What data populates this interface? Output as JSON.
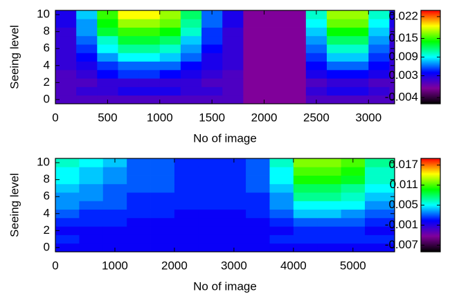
{
  "chart_data": [
    {
      "type": "heatmap",
      "xlabel": "No of image",
      "ylabel": "Seeing level",
      "x_edges": [
        0,
        200,
        400,
        600,
        800,
        1000,
        1200,
        1400,
        1600,
        1800,
        2000,
        2200,
        2400,
        2600,
        2800,
        3000,
        3200,
        3250
      ],
      "y_edges": [
        -0.5,
        0.5,
        1.5,
        2.5,
        3.5,
        4.5,
        5.5,
        6.5,
        7.5,
        8.5,
        9.5,
        10.5
      ],
      "values": [
        [
          0.001,
          0.001,
          0.001,
          0.001,
          0.001,
          0.001,
          0.001,
          0.001,
          0.001,
          -0.001,
          -0.001,
          -0.001,
          0.001,
          0.001,
          0.001,
          0.001,
          0.001
        ],
        [
          0.001,
          0.002,
          0.002,
          0.003,
          0.003,
          0.003,
          0.002,
          0.002,
          0.001,
          -0.001,
          -0.001,
          -0.001,
          0.002,
          0.003,
          0.003,
          0.002,
          0.001
        ],
        [
          0.001,
          0.001,
          0.002,
          0.002,
          0.002,
          0.002,
          0.002,
          0.001,
          0.001,
          -0.001,
          -0.001,
          -0.001,
          0.001,
          0.002,
          0.002,
          0.001,
          0.001
        ],
        [
          0.001,
          0.002,
          0.004,
          0.005,
          0.005,
          0.004,
          0.003,
          0.002,
          0.001,
          -0.001,
          -0.001,
          -0.001,
          0.003,
          0.004,
          0.004,
          0.003,
          0.001
        ],
        [
          0.002,
          0.003,
          0.005,
          0.006,
          0.006,
          0.006,
          0.004,
          0.003,
          0.002,
          -0.001,
          -0.001,
          -0.001,
          0.004,
          0.006,
          0.006,
          0.004,
          0.002
        ],
        [
          0.002,
          0.004,
          0.007,
          0.009,
          0.009,
          0.008,
          0.006,
          0.003,
          0.002,
          -0.001,
          -0.001,
          -0.001,
          0.005,
          0.008,
          0.008,
          0.005,
          0.002
        ],
        [
          0.002,
          0.005,
          0.009,
          0.011,
          0.011,
          0.01,
          0.007,
          0.004,
          0.002,
          -0.001,
          -0.001,
          -0.001,
          0.006,
          0.01,
          0.01,
          0.006,
          0.002
        ],
        [
          0.002,
          0.006,
          0.01,
          0.013,
          0.013,
          0.012,
          0.008,
          0.005,
          0.002,
          -0.001,
          -0.001,
          -0.001,
          0.007,
          0.012,
          0.012,
          0.007,
          0.002
        ],
        [
          0.002,
          0.007,
          0.013,
          0.015,
          0.015,
          0.014,
          0.01,
          0.005,
          0.002,
          -0.001,
          -0.001,
          -0.001,
          0.008,
          0.014,
          0.014,
          0.008,
          0.002
        ],
        [
          0.003,
          0.007,
          0.014,
          0.017,
          0.017,
          0.016,
          0.011,
          0.006,
          0.003,
          -0.001,
          -0.001,
          -0.001,
          0.009,
          0.016,
          0.016,
          0.009,
          0.003
        ],
        [
          0.003,
          0.008,
          0.015,
          0.019,
          0.019,
          0.017,
          0.012,
          0.006,
          0.003,
          -0.001,
          -0.001,
          -0.001,
          0.01,
          0.017,
          0.017,
          0.01,
          0.003
        ]
      ],
      "xlim": [
        0,
        3250
      ],
      "xticks": [
        0,
        500,
        1000,
        1500,
        2000,
        2500,
        3000
      ],
      "ylim": [
        -0.5,
        10.5
      ],
      "yticks": [
        0,
        2,
        4,
        6,
        8,
        10
      ],
      "zlim": [
        -0.006,
        0.024
      ],
      "zticks": [
        -0.004,
        0.003,
        0.009,
        0.015,
        0.022
      ],
      "colormap": [
        "#000000",
        "#80009a",
        "#0000ff",
        "#00ffff",
        "#00ff00",
        "#ffff00",
        "#ff0000"
      ]
    },
    {
      "type": "heatmap",
      "xlabel": "No of image",
      "ylabel": "Seeing level",
      "x_edges": [
        0,
        400,
        800,
        1200,
        1600,
        2000,
        2400,
        2800,
        3200,
        3600,
        4000,
        4400,
        4800,
        5200,
        5700
      ],
      "y_edges": [
        -0.5,
        0.5,
        1.5,
        2.5,
        3.5,
        4.5,
        5.5,
        6.5,
        7.5,
        8.5,
        9.5,
        10.5
      ],
      "values": [
        [
          0,
          0,
          0,
          0,
          0,
          0,
          0,
          0,
          0,
          0,
          0,
          0,
          0,
          0
        ],
        [
          0.001,
          0,
          0,
          0,
          0,
          0,
          0,
          0,
          0,
          0.001,
          0.001,
          0.001,
          0.001,
          0.001
        ],
        [
          0,
          0,
          0,
          0,
          0,
          0,
          0,
          0,
          0,
          0,
          0.001,
          0.001,
          0.001,
          0
        ],
        [
          0.001,
          0.001,
          0.001,
          0,
          0,
          0,
          0,
          0,
          0,
          0.001,
          0.002,
          0.002,
          0.002,
          0.001
        ],
        [
          0.002,
          0.001,
          0.001,
          0.001,
          0.001,
          0,
          0,
          0,
          0.001,
          0.002,
          0.004,
          0.004,
          0.003,
          0.002
        ],
        [
          0.003,
          0.002,
          0.002,
          0.001,
          0.001,
          0.001,
          0.001,
          0.001,
          0.001,
          0.003,
          0.005,
          0.005,
          0.005,
          0.003
        ],
        [
          0.003,
          0.003,
          0.002,
          0.001,
          0.001,
          0.001,
          0.001,
          0.001,
          0.001,
          0.003,
          0.007,
          0.007,
          0.006,
          0.004
        ],
        [
          0.004,
          0.003,
          0.002,
          0.002,
          0.002,
          0.001,
          0.001,
          0.001,
          0.002,
          0.004,
          0.008,
          0.008,
          0.007,
          0.005
        ],
        [
          0.005,
          0.004,
          0.003,
          0.002,
          0.002,
          0.001,
          0.001,
          0.001,
          0.002,
          0.005,
          0.01,
          0.01,
          0.009,
          0.006
        ],
        [
          0.005,
          0.004,
          0.003,
          0.002,
          0.002,
          0.001,
          0.001,
          0.001,
          0.002,
          0.005,
          0.011,
          0.011,
          0.01,
          0.006
        ],
        [
          0.006,
          0.005,
          0.004,
          0.002,
          0.002,
          0.001,
          0.001,
          0.001,
          0.002,
          0.006,
          0.012,
          0.012,
          0.011,
          0.007
        ]
      ],
      "xlim": [
        0,
        5700
      ],
      "xticks": [
        0,
        1000,
        2000,
        3000,
        4000,
        5000
      ],
      "ylim": [
        -0.5,
        10.5
      ],
      "yticks": [
        0,
        2,
        4,
        6,
        8,
        10
      ],
      "zlim": [
        -0.009,
        0.019
      ],
      "zticks": [
        -0.007,
        -0.001,
        0.005,
        0.011,
        0.017
      ],
      "colormap": [
        "#000000",
        "#80009a",
        "#0000ff",
        "#00ffff",
        "#00ff00",
        "#ffff00",
        "#ff0000"
      ]
    }
  ]
}
